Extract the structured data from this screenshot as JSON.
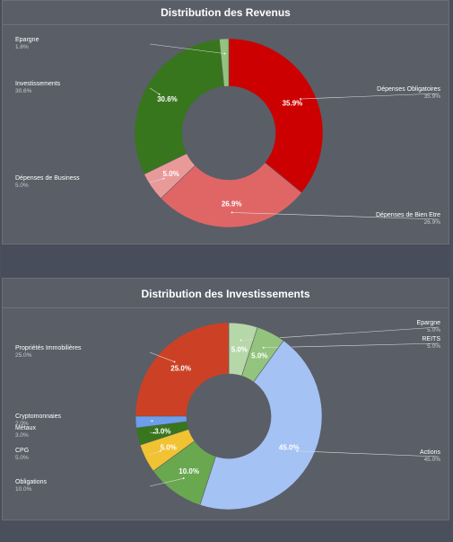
{
  "chart_data": [
    {
      "type": "pie",
      "title": "Distribution des Revenus",
      "categories": [
        "Dépenses Obligatoires",
        "Dépenses de Bien Etre",
        "Dépenses de Business",
        "Investissements",
        "Epargne"
      ],
      "values": [
        35.9,
        26.9,
        5.0,
        30.6,
        1.6
      ],
      "value_labels": [
        "35.9%",
        "26.9%",
        "5.0%",
        "30.6%",
        "1.6%"
      ],
      "colors": [
        "#cc0000",
        "#e06666",
        "#ea9999",
        "#38761d",
        "#93c47d"
      ],
      "label_sides": [
        "right",
        "right",
        "left",
        "left",
        "left"
      ],
      "inside_labels": [
        true,
        true,
        true,
        true,
        false
      ]
    },
    {
      "type": "pie",
      "title": "Distribution des Investissements",
      "categories": [
        "Epargne",
        "REITS",
        "Actions",
        "Obligations",
        "CPG",
        "Métaux",
        "Cryptomonnaies",
        "Propriétés Immobilières"
      ],
      "values": [
        5.0,
        5.0,
        45.0,
        10.0,
        5.0,
        3.0,
        2.0,
        25.0
      ],
      "value_labels": [
        "5.0%",
        "5.0%",
        "45.0%",
        "10.0%",
        "5.0%",
        "3.0%",
        "2.0%",
        "25.0%"
      ],
      "colors": [
        "#b6d7a8",
        "#93c47d",
        "#a4c2f4",
        "#6aa84f",
        "#f1c232",
        "#38761d",
        "#6d9eeb",
        "#cc4125"
      ],
      "label_sides": [
        "right",
        "right",
        "right",
        "left",
        "left",
        "left",
        "left",
        "left"
      ],
      "inside_labels": [
        true,
        true,
        true,
        true,
        true,
        true,
        false,
        true
      ]
    }
  ]
}
